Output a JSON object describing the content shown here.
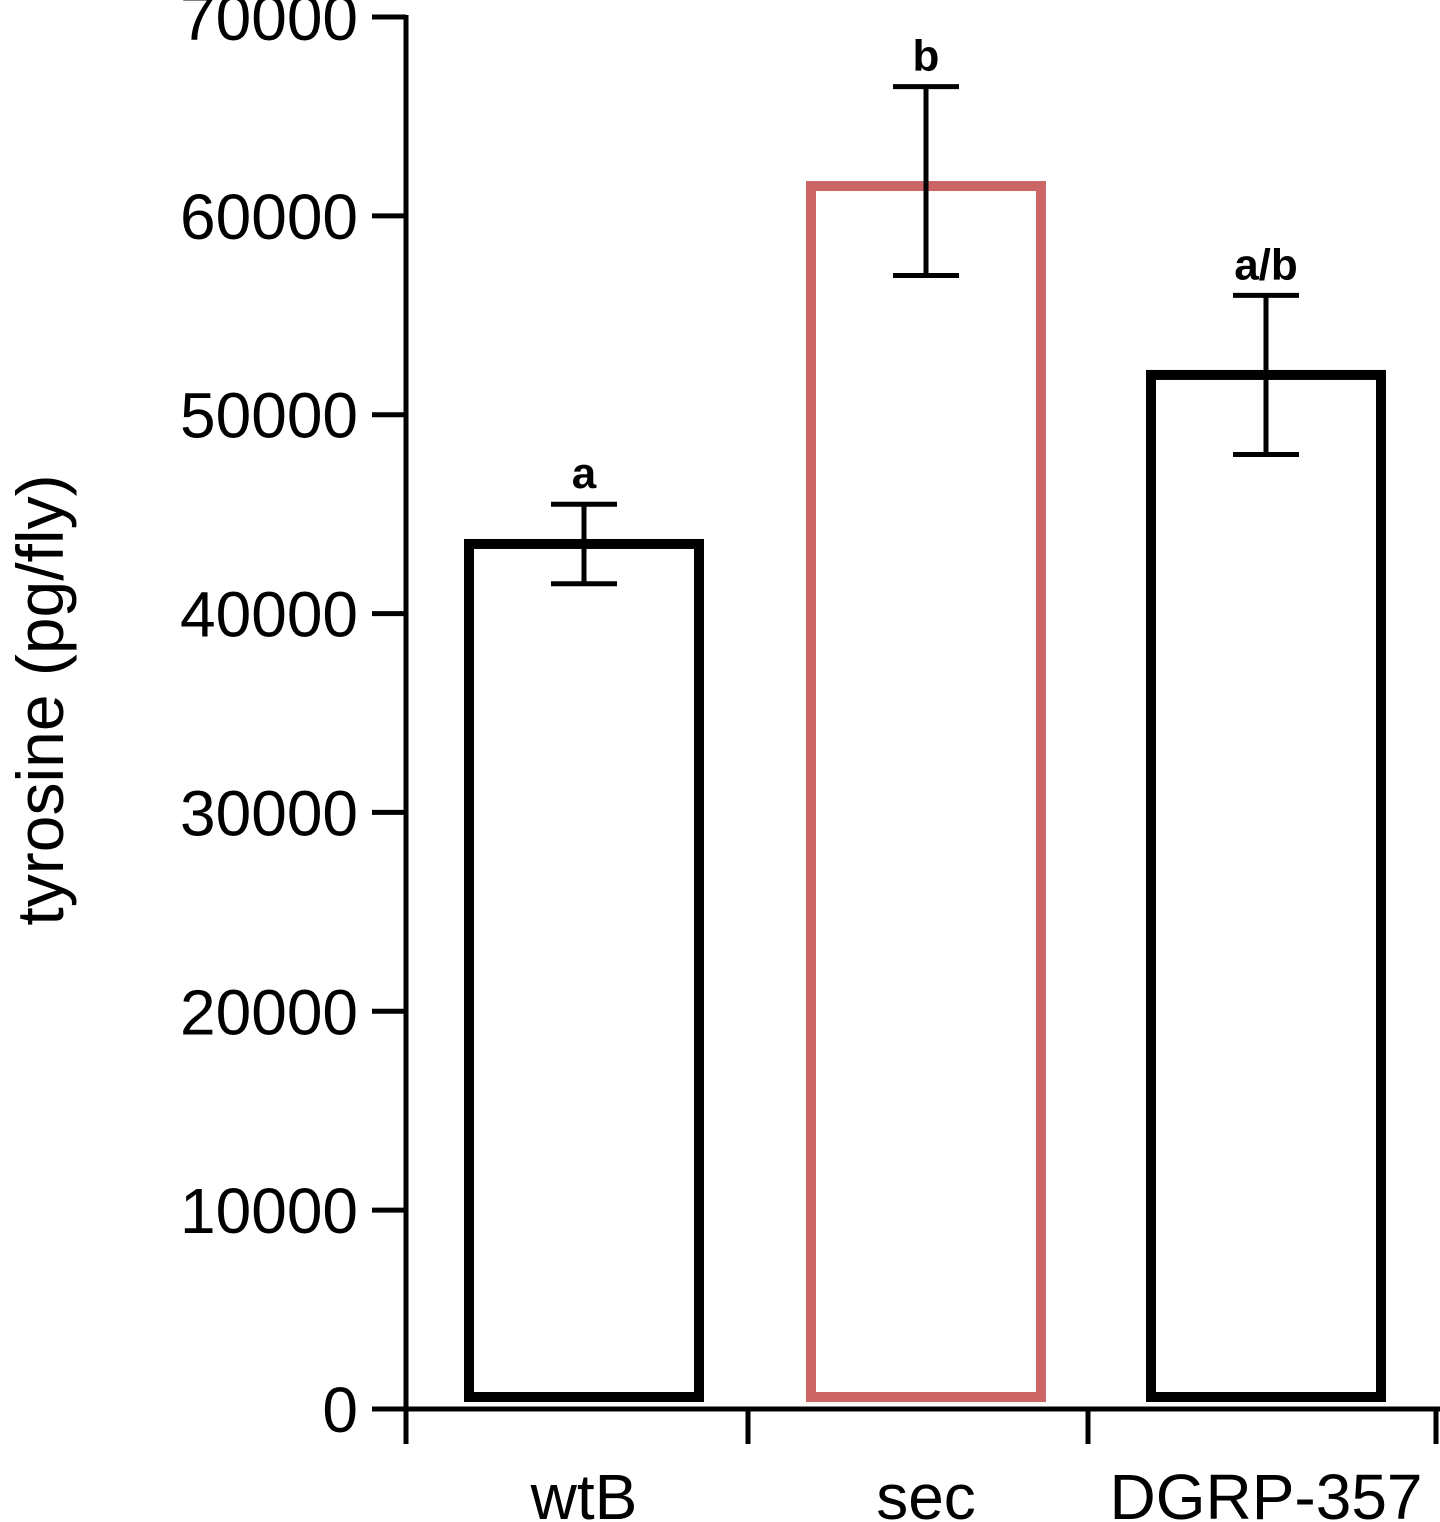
{
  "chart_data": {
    "type": "bar",
    "categories": [
      "wtB",
      "sec",
      "DGRP-357"
    ],
    "values": [
      43500,
      61500,
      52000
    ],
    "error_low": [
      41500,
      57000,
      48000
    ],
    "error_high": [
      45500,
      66500,
      56000
    ],
    "significance_labels": [
      "a",
      "b",
      "a/b"
    ],
    "bar_colors": [
      "#000000",
      "#cc6666",
      "#000000"
    ],
    "bar_fill": "#ffffff",
    "ylabel": "tyrosine (pg/fly)",
    "xlabel": "",
    "ylim": [
      0,
      70000
    ],
    "yticks": [
      0,
      10000,
      20000,
      30000,
      40000,
      50000,
      60000,
      70000
    ],
    "grid": false,
    "legend": "none"
  }
}
